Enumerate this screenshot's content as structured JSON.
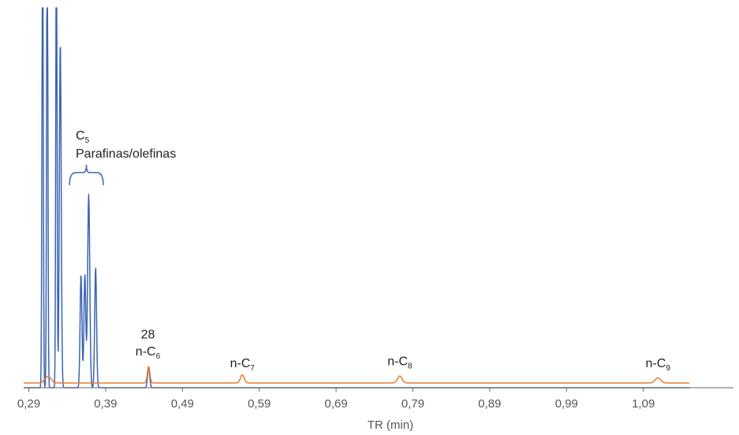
{
  "chart_data": {
    "type": "line",
    "title": "",
    "xlabel": "TR (min)",
    "ylabel": "",
    "xlim": [
      0.28,
      1.15
    ],
    "ylim": [
      0,
      100
    ],
    "x_ticks": [
      0.29,
      0.39,
      0.49,
      0.59,
      0.69,
      0.79,
      0.89,
      0.99,
      1.09
    ],
    "x_tick_labels": [
      "0,29",
      "0,39",
      "0,49",
      "0,59",
      "0,69",
      "0,79",
      "0,89",
      "0,99",
      "1,09"
    ],
    "grid": false,
    "legend": "none",
    "colors": {
      "blue_trace": "#3a64b2",
      "orange_trace": "#e87b2f",
      "axis": "#666666"
    },
    "series": [
      {
        "color": "#3a64b2",
        "baseline": 0,
        "peaks": [
          {
            "rt": 0.308,
            "height": 140,
            "width": 0.0008
          },
          {
            "rt": 0.314,
            "height": 140,
            "width": 0.0008
          },
          {
            "rt": 0.326,
            "height": 140,
            "width": 0.0008
          },
          {
            "rt": 0.331,
            "height": 95,
            "width": 0.0012
          },
          {
            "rt": 0.358,
            "height": 31,
            "width": 0.0012
          },
          {
            "rt": 0.363,
            "height": 31,
            "width": 0.0012
          },
          {
            "rt": 0.368,
            "height": 53,
            "width": 0.0014
          },
          {
            "rt": 0.377,
            "height": 33,
            "width": 0.0012
          },
          {
            "rt": 0.446,
            "height": 5.5,
            "width": 0.0014
          }
        ]
      },
      {
        "color": "#e87b2f",
        "baseline": 1.3,
        "peaks": [
          {
            "rt": 0.315,
            "height": 1.8,
            "width": 0.004
          },
          {
            "rt": 0.446,
            "height": 4.5,
            "width": 0.0016
          },
          {
            "rt": 0.568,
            "height": 2.2,
            "width": 0.0025
          },
          {
            "rt": 0.773,
            "height": 1.9,
            "width": 0.003
          },
          {
            "rt": 1.109,
            "height": 1.4,
            "width": 0.0035
          }
        ]
      }
    ],
    "annotations": [
      {
        "id": "c5",
        "main": "C",
        "sub": "5",
        "x": 0.35,
        "y": 68
      },
      {
        "id": "c5-desc",
        "main": "Parafinas/olefinas",
        "sub": "",
        "x": 0.35,
        "y": 63
      },
      {
        "id": "n28",
        "main": "28",
        "sub": "",
        "x": 0.445,
        "y": 13.5
      },
      {
        "id": "nc6",
        "main": "n-C",
        "sub": "6",
        "x": 0.445,
        "y": 8.8
      },
      {
        "id": "nc7",
        "main": "n-C",
        "sub": "7",
        "x": 0.568,
        "y": 5.6
      },
      {
        "id": "nc8",
        "main": "n-C",
        "sub": "8",
        "x": 0.773,
        "y": 6.2
      },
      {
        "id": "nc9",
        "main": "n-C",
        "sub": "9",
        "x": 1.109,
        "y": 5.6
      }
    ]
  }
}
